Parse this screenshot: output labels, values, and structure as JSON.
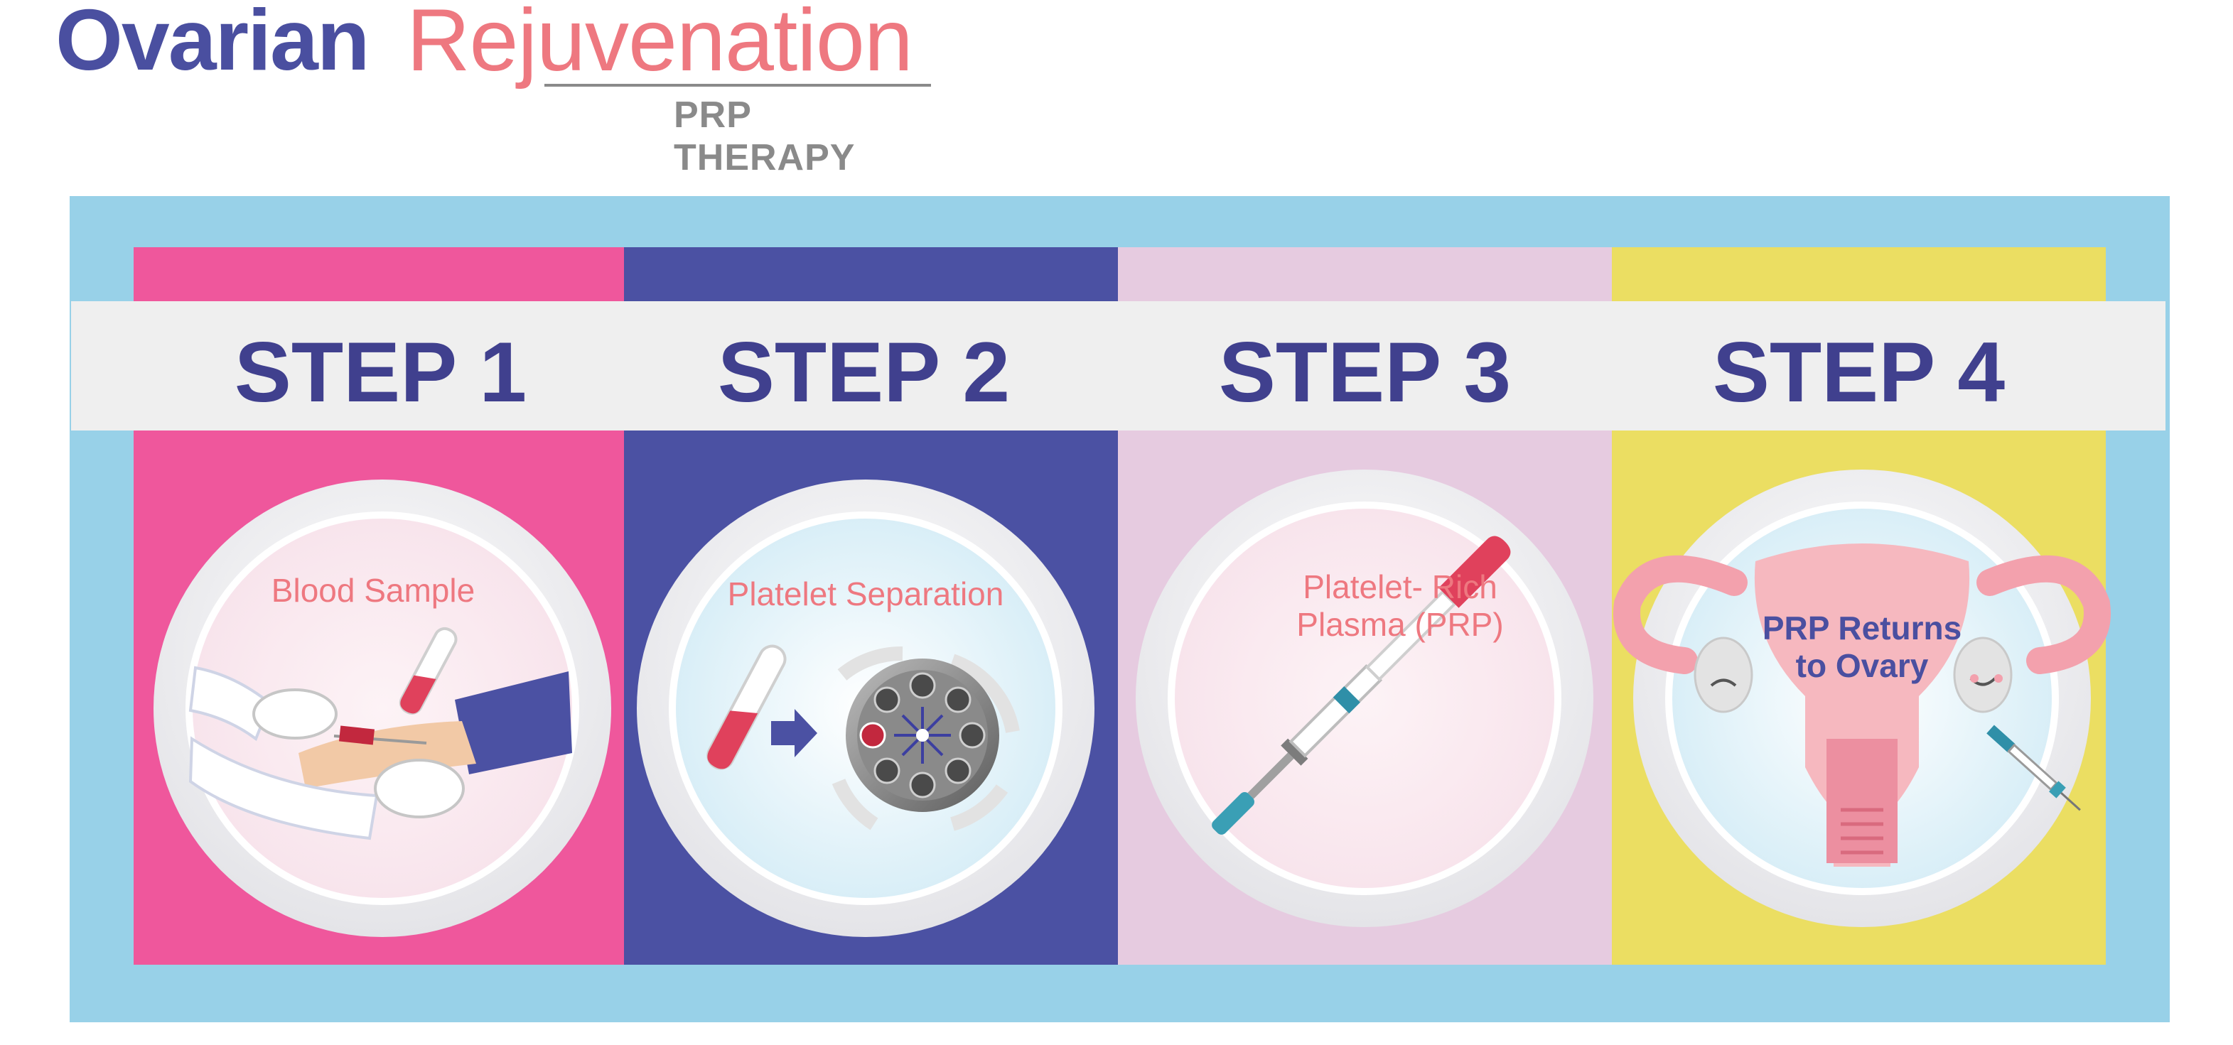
{
  "header": {
    "title_part1": "Ovarian",
    "title_part2": "Rejuvenation",
    "subtitle": "PRP THERAPY"
  },
  "steps": [
    {
      "label": "STEP 1",
      "caption": "Blood Sample"
    },
    {
      "label": "STEP 2",
      "caption": "Platelet Separation"
    },
    {
      "label": "STEP 3",
      "caption_line1": "Platelet- Rich",
      "caption_line2": "Plasma (PRP)"
    },
    {
      "label": "STEP 4",
      "caption_line1": "PRP Returns",
      "caption_line2": "to Ovary"
    }
  ],
  "colors": {
    "frame": "#98d1e8",
    "step1": "#ef579c",
    "step2": "#4b51a3",
    "step3": "#e6cbe0",
    "step4": "#ebde62",
    "title_navy": "#4a4fa0",
    "title_coral": "#ee7880"
  },
  "icons": [
    "hand-drawing-blood-icon",
    "blood-tube-icon",
    "arrow-right-icon",
    "centrifuge-icon",
    "syringe-icon",
    "uterus-ovaries-icon"
  ]
}
